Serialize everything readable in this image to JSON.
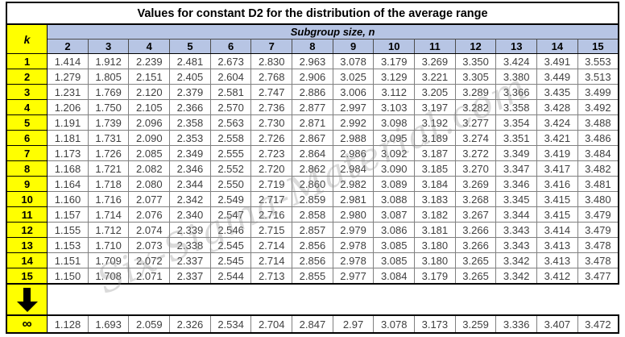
{
  "title": "Values for constant D2 for the distribution of the average range",
  "watermark": "Six-Sigma-Material.com",
  "colors": {
    "header_fill": "#b7c5e4",
    "k_column_fill": "#ffff00",
    "outer_border": "#000000",
    "inner_border": "#808080",
    "value_text": "#3f3f3f"
  },
  "table": {
    "corner_label": "k",
    "group_header": "Subgroup size, n",
    "columns": [
      "2",
      "3",
      "4",
      "5",
      "6",
      "7",
      "8",
      "9",
      "10",
      "11",
      "12",
      "13",
      "14",
      "15"
    ],
    "rows": [
      {
        "k": "1",
        "values": [
          "1.414",
          "1.912",
          "2.239",
          "2.481",
          "2.673",
          "2.830",
          "2.963",
          "3.078",
          "3.179",
          "3.269",
          "3.350",
          "3.424",
          "3.491",
          "3.553"
        ]
      },
      {
        "k": "2",
        "values": [
          "1.279",
          "1.805",
          "2.151",
          "2.405",
          "2.604",
          "2.768",
          "2.906",
          "3.025",
          "3.129",
          "3.221",
          "3.305",
          "3.380",
          "3.449",
          "3.513"
        ]
      },
      {
        "k": "3",
        "values": [
          "1.231",
          "1.769",
          "2.120",
          "2.379",
          "2.581",
          "2.747",
          "2.886",
          "3.006",
          "3.112",
          "3.205",
          "3.289",
          "3.366",
          "3.435",
          "3.499"
        ]
      },
      {
        "k": "4",
        "values": [
          "1.206",
          "1.750",
          "2.105",
          "2.366",
          "2.570",
          "2.736",
          "2.877",
          "2.997",
          "3.103",
          "3.197",
          "3.282",
          "3.358",
          "3.428",
          "3.492"
        ]
      },
      {
        "k": "5",
        "values": [
          "1.191",
          "1.739",
          "2.096",
          "2.358",
          "2.563",
          "2.730",
          "2.871",
          "2.992",
          "3.098",
          "3.192",
          "3.277",
          "3.354",
          "3.424",
          "3.488"
        ]
      },
      {
        "k": "6",
        "values": [
          "1.181",
          "1.731",
          "2.090",
          "2.353",
          "2.558",
          "2.726",
          "2.867",
          "2.988",
          "3.095",
          "3.189",
          "3.274",
          "3.351",
          "3.421",
          "3.486"
        ]
      },
      {
        "k": "7",
        "values": [
          "1.173",
          "1.726",
          "2.085",
          "2.349",
          "2.555",
          "2.723",
          "2.864",
          "2.986",
          "3.092",
          "3.187",
          "3.272",
          "3.349",
          "3.419",
          "3.484"
        ]
      },
      {
        "k": "8",
        "values": [
          "1.168",
          "1.721",
          "2.082",
          "2.346",
          "2.552",
          "2.720",
          "2.862",
          "2.984",
          "3.090",
          "3.185",
          "3.270",
          "3.347",
          "3.417",
          "3.482"
        ]
      },
      {
        "k": "9",
        "values": [
          "1.164",
          "1.718",
          "2.080",
          "2.344",
          "2.550",
          "2.719",
          "2.860",
          "2.982",
          "3.089",
          "3.184",
          "3.269",
          "3.346",
          "3.416",
          "3.481"
        ]
      },
      {
        "k": "10",
        "values": [
          "1.160",
          "1.716",
          "2.077",
          "2.342",
          "2.549",
          "2.717",
          "2.859",
          "2.981",
          "3.088",
          "3.183",
          "3.268",
          "3.345",
          "3.415",
          "3.480"
        ]
      },
      {
        "k": "11",
        "values": [
          "1.157",
          "1.714",
          "2.076",
          "2.340",
          "2.547",
          "2.716",
          "2.858",
          "2.980",
          "3.087",
          "3.182",
          "3.267",
          "3.344",
          "3.415",
          "3.479"
        ]
      },
      {
        "k": "12",
        "values": [
          "1.155",
          "1.712",
          "2.074",
          "2.339",
          "2.546",
          "2.715",
          "2.857",
          "2.979",
          "3.086",
          "3.181",
          "3.266",
          "3.343",
          "3.414",
          "3.479"
        ]
      },
      {
        "k": "13",
        "values": [
          "1.153",
          "1.710",
          "2.073",
          "2.338",
          "2.545",
          "2.714",
          "2.856",
          "2.978",
          "3.085",
          "3.180",
          "3.266",
          "3.343",
          "3.413",
          "3.478"
        ]
      },
      {
        "k": "14",
        "values": [
          "1.151",
          "1.709",
          "2.072",
          "2.337",
          "2.545",
          "2.714",
          "2.856",
          "2.978",
          "3.085",
          "3.180",
          "3.265",
          "3.342",
          "3.413",
          "3.478"
        ]
      },
      {
        "k": "15",
        "values": [
          "1.150",
          "1.708",
          "2.071",
          "2.337",
          "2.544",
          "2.713",
          "2.855",
          "2.977",
          "3.084",
          "3.179",
          "3.265",
          "3.342",
          "3.412",
          "3.477"
        ]
      }
    ],
    "infinity_row": {
      "k": "∞",
      "values": [
        "1.128",
        "1.693",
        "2.059",
        "2.326",
        "2.534",
        "2.704",
        "2.847",
        "2.97",
        "3.078",
        "3.173",
        "3.259",
        "3.336",
        "3.407",
        "3.472"
      ]
    }
  }
}
